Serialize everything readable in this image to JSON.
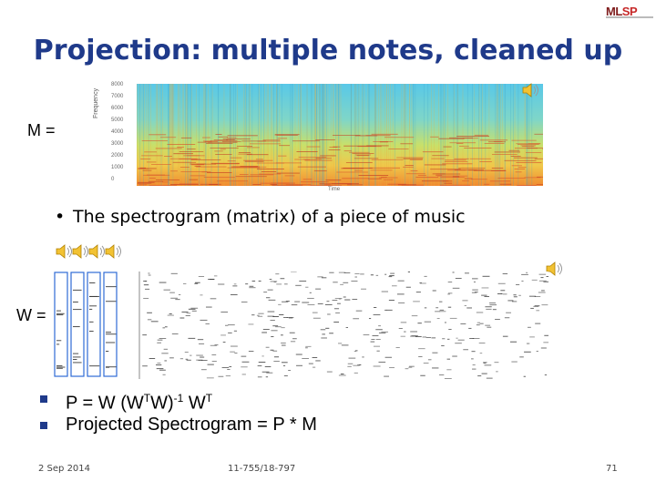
{
  "title": "Projection: multiple notes, cleaned up",
  "logo": {
    "text_a": "ML",
    "text_b": "SP"
  },
  "labels": {
    "m": "M =",
    "w": "W ="
  },
  "spectrogram": {
    "y_axis_label": "Frequency",
    "y_ticks": [
      "8000",
      "7000",
      "6000",
      "5000",
      "4000",
      "3000",
      "2000",
      "1000",
      "0"
    ],
    "x_axis_label": "Time"
  },
  "bullet": "The spectrogram (matrix) of a piece of music",
  "equations": {
    "p_main": "P = W (W",
    "p_t1": "T",
    "p_mid": "W)",
    "p_inv": "-1",
    "p_w": " W",
    "p_t2": "T",
    "projected": "Projected Spectrogram = P * M"
  },
  "footer": {
    "date": "2 Sep 2014",
    "course": "11-755/18-797",
    "page": "71"
  },
  "colors": {
    "title": "#1f3a8a",
    "bullet_square": "#1f3a8a",
    "note_border": "#2f6bd6"
  },
  "icons": [
    "speaker-icon"
  ]
}
